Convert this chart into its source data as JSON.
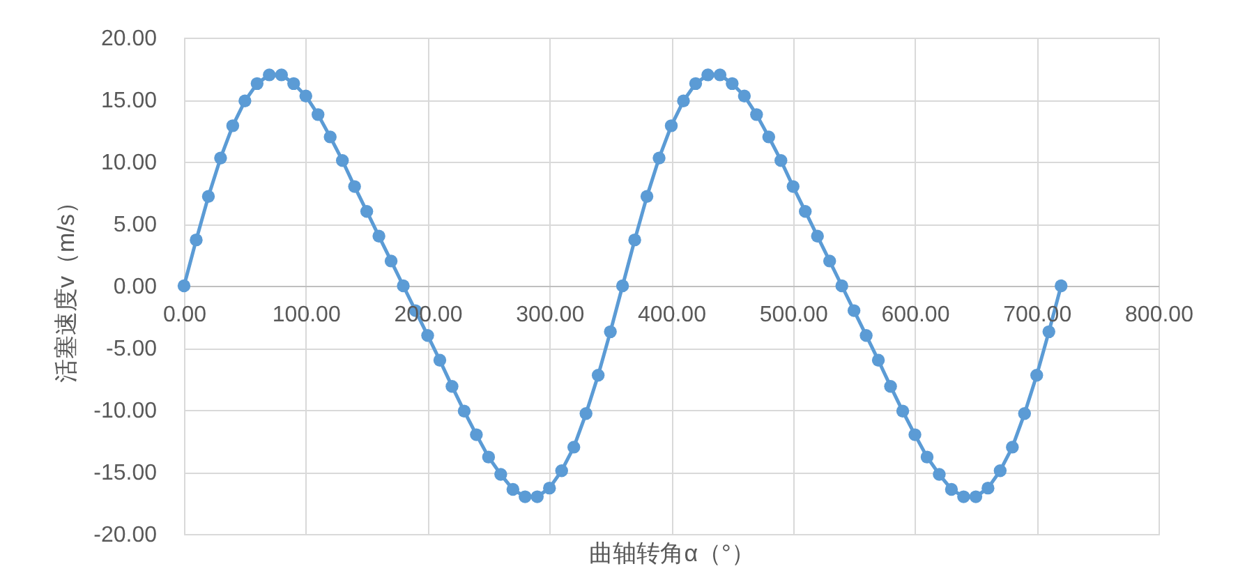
{
  "chart_data": {
    "type": "line",
    "xlabel": "曲轴转角α（°）",
    "ylabel": "活塞速度v（m/s）",
    "x": [
      0,
      10,
      20,
      30,
      40,
      50,
      60,
      70,
      80,
      90,
      100,
      110,
      120,
      130,
      140,
      150,
      160,
      170,
      180,
      190,
      200,
      210,
      220,
      230,
      240,
      250,
      260,
      270,
      280,
      290,
      300,
      310,
      320,
      330,
      340,
      350,
      360,
      370,
      380,
      390,
      400,
      410,
      420,
      430,
      440,
      450,
      460,
      470,
      480,
      490,
      500,
      510,
      520,
      530,
      540,
      550,
      560,
      570,
      580,
      590,
      600,
      610,
      620,
      630,
      640,
      650,
      660,
      670,
      680,
      690,
      700,
      710,
      720
    ],
    "series": [
      {
        "color": "#5b9bd5",
        "values": [
          0,
          3.7,
          7.2,
          10.3,
          12.9,
          14.9,
          16.3,
          17.0,
          17.0,
          16.3,
          15.3,
          13.8,
          12.0,
          10.1,
          8.0,
          6.0,
          4.0,
          2.0,
          0,
          -2.0,
          -4.0,
          -6.0,
          -8.1,
          -10.1,
          -12.0,
          -13.8,
          -15.2,
          -16.4,
          -17.0,
          -17.0,
          -16.3,
          -14.9,
          -13.0,
          -10.3,
          -7.2,
          -3.7,
          0,
          3.7,
          7.2,
          10.3,
          12.9,
          14.9,
          16.3,
          17.0,
          17.0,
          16.3,
          15.3,
          13.8,
          12.0,
          10.1,
          8.0,
          6.0,
          4.0,
          2.0,
          0,
          -2.0,
          -4.0,
          -6.0,
          -8.1,
          -10.1,
          -12.0,
          -13.8,
          -15.2,
          -16.4,
          -17.0,
          -17.0,
          -16.3,
          -14.9,
          -13.0,
          -10.3,
          -7.2,
          -3.7,
          0
        ]
      }
    ],
    "xlim": [
      0,
      800
    ],
    "xticks": [
      {
        "value": 0,
        "label": "0.00"
      },
      {
        "value": 100,
        "label": "100.00"
      },
      {
        "value": 200,
        "label": "200.00"
      },
      {
        "value": 300,
        "label": "300.00"
      },
      {
        "value": 400,
        "label": "400.00"
      },
      {
        "value": 500,
        "label": "500.00"
      },
      {
        "value": 600,
        "label": "600.00"
      },
      {
        "value": 700,
        "label": "700.00"
      },
      {
        "value": 800,
        "label": "800.00"
      }
    ],
    "ylim": [
      -20,
      20
    ],
    "yticks": [
      {
        "value": -20,
        "label": "-20.00"
      },
      {
        "value": -15,
        "label": "-15.00"
      },
      {
        "value": -10,
        "label": "-10.00"
      },
      {
        "value": -5,
        "label": "-5.00"
      },
      {
        "value": 0,
        "label": "0.00"
      },
      {
        "value": 5,
        "label": "5.00"
      },
      {
        "value": 10,
        "label": "10.00"
      },
      {
        "value": 15,
        "label": "15.00"
      },
      {
        "value": 20,
        "label": "20.00"
      }
    ],
    "grid": true,
    "marker": "circle",
    "line_style": "solid"
  }
}
